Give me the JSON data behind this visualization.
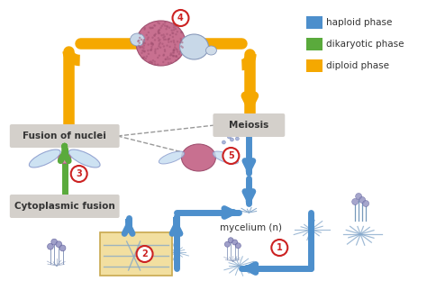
{
  "bg_color": "#ffffff",
  "blue": "#4d8fcc",
  "green": "#5aaa3c",
  "orange": "#f5a800",
  "gray_box": "#d4d0cb",
  "legend_items": [
    {
      "label": "haploid phase",
      "color": "#4d8fcc"
    },
    {
      "label": "dikaryotic phase",
      "color": "#5aaa3c"
    },
    {
      "label": "diploid phase",
      "color": "#f5a800"
    }
  ],
  "labels": {
    "fusion_nuclei": "Fusion of nuclei",
    "meiosis": "Meiosis",
    "cytoplasmic_fusion": "Cytoplasmic fusion",
    "mycelium": "mycelium (n)"
  },
  "numbers": [
    "1",
    "2",
    "3",
    "4",
    "5"
  ],
  "fig_w": 4.74,
  "fig_h": 3.22,
  "dpi": 100
}
